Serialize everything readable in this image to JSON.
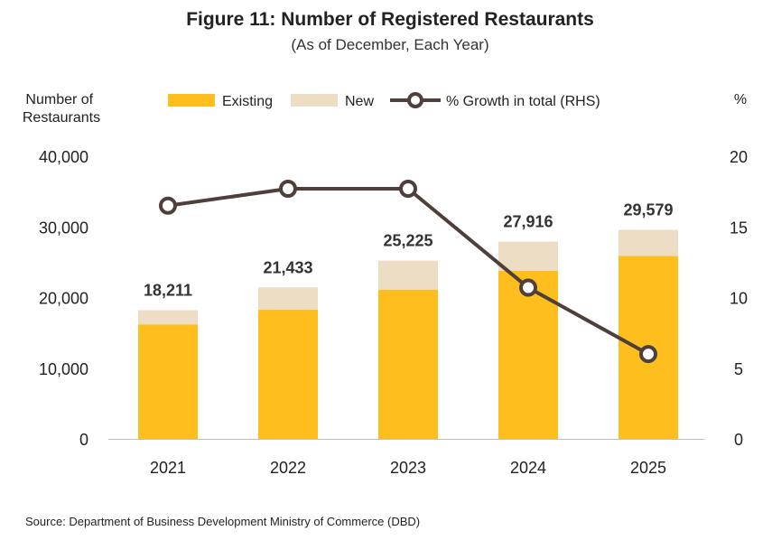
{
  "chart_data": {
    "type": "bar",
    "title": "Figure 11: Number of Registered Restaurants",
    "subtitle": "(As of December, Each Year)",
    "ylabel_left": [
      "Number of",
      "Restaurants"
    ],
    "ylabel_right": "%",
    "categories": [
      "2021",
      "2022",
      "2023",
      "2024",
      "2025"
    ],
    "series": [
      {
        "name": "Existing",
        "kind": "stacked-bar",
        "color": "#FDBE1E",
        "values": [
          16200,
          18300,
          21100,
          23800,
          25900
        ]
      },
      {
        "name": "New",
        "kind": "stacked-bar",
        "color": "#ECDDC4",
        "values": [
          2011,
          3133,
          4125,
          4116,
          3679
        ]
      },
      {
        "name": "% Growth in total (RHS)",
        "kind": "line",
        "axis": "right",
        "color": "#4F3F3B",
        "values": [
          16.5,
          17.7,
          17.7,
          10.7,
          6.0
        ]
      }
    ],
    "totals": [
      "18,211",
      "21,433",
      "25,225",
      "27,916",
      "29,579"
    ],
    "ylim_left": [
      0,
      40000
    ],
    "yticks_left": [
      "0",
      "10,000",
      "20,000",
      "30,000",
      "40,000"
    ],
    "yticks_left_values": [
      0,
      10000,
      20000,
      30000,
      40000
    ],
    "ylim_right": [
      0,
      20
    ],
    "yticks_right": [
      "0",
      "5",
      "10",
      "15",
      "20"
    ],
    "yticks_right_values": [
      0,
      5,
      10,
      15,
      20
    ],
    "grid": false,
    "legend_position": "top"
  },
  "source": "Source: Department of Business Development Ministry of Commerce (DBD)"
}
